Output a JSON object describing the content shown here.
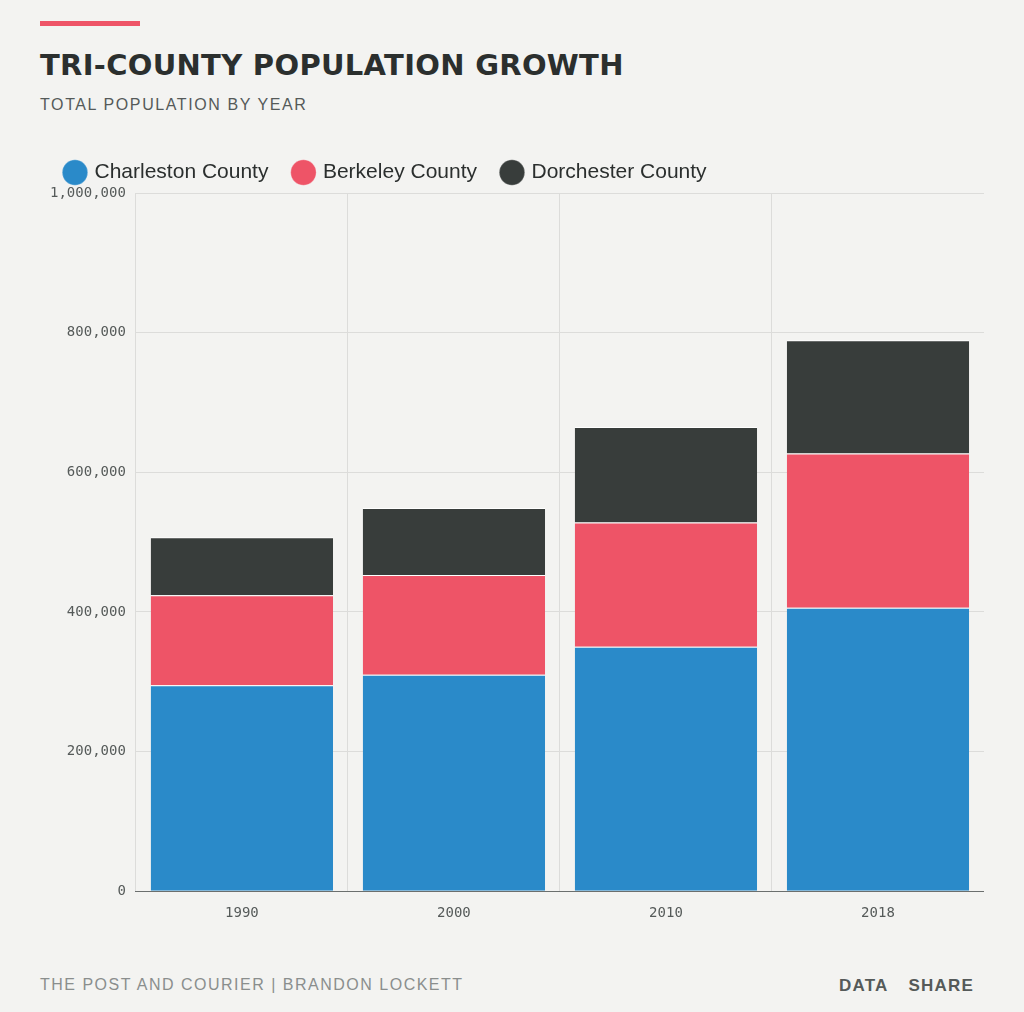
{
  "chart_data": {
    "type": "bar",
    "title": "TRI-COUNTY POPULATION GROWTH",
    "subtitle": "TOTAL POPULATION BY YEAR",
    "source": "THE POST AND COURIER | BRANDON LOCKETT",
    "links": [
      "DATA",
      "SHARE"
    ],
    "categories": [
      "1990",
      "2000",
      "2010",
      "2018"
    ],
    "series": [
      {
        "name": "Charleston County",
        "color": "#2a8ac9",
        "values": [
          295000,
          310000,
          350000,
          406000
        ]
      },
      {
        "name": "Berkeley County",
        "color": "#ee5467",
        "values": [
          129000,
          143000,
          178000,
          221000
        ]
      },
      {
        "name": "Dorchester County",
        "color": "#383d3b",
        "values": [
          83000,
          96000,
          137000,
          162000
        ]
      }
    ],
    "stacked": true,
    "ylim": [
      0,
      1000000
    ],
    "yticks": [
      0,
      {
        "value": 200000,
        "label": "200,000"
      },
      {
        "value": 400000,
        "label": "400,000"
      },
      {
        "value": 600000,
        "label": "600,000"
      },
      {
        "value": 800000,
        "label": "800,000"
      },
      {
        "value": 1000000,
        "label": "1,000,000"
      }
    ],
    "grid": true,
    "legend": "top"
  }
}
